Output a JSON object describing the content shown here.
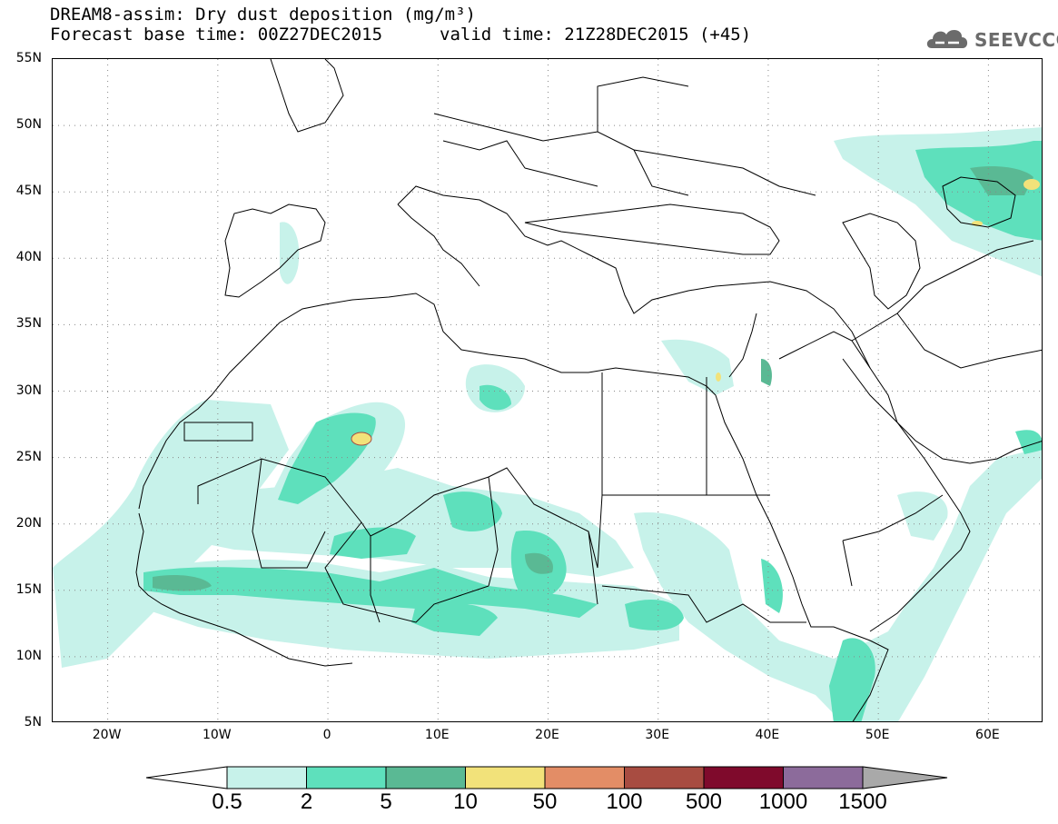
{
  "header": {
    "title": "DREAM8-assim: Dry dust deposition (mg/m³)",
    "base_time": "Forecast base time: 00Z27DEC2015",
    "valid_time": "valid time: 21Z28DEC2015 (+45)"
  },
  "logo": {
    "text": "SEEVCCC",
    "icon": "cloud-logo-icon",
    "color": "#6b6b6b"
  },
  "map": {
    "projection": "equirectangular",
    "lon_range": [
      -25,
      65
    ],
    "lat_range": [
      5,
      55
    ],
    "lat_labels": [
      "55N",
      "50N",
      "45N",
      "40N",
      "35N",
      "30N",
      "25N",
      "20N",
      "15N",
      "10N",
      "5N"
    ],
    "lon_labels": [
      "20W",
      "10W",
      "0",
      "10E",
      "20E",
      "30E",
      "40E",
      "50E",
      "60E"
    ],
    "gridlines": "dotted"
  },
  "legend": {
    "levels": [
      "0.5",
      "2",
      "5",
      "10",
      "50",
      "100",
      "500",
      "1000",
      "1500"
    ],
    "colors": [
      "#ffffff",
      "#c7f2ea",
      "#5ee0bc",
      "#5ab994",
      "#f2e27a",
      "#e38d66",
      "#a84c41",
      "#7f0a2c",
      "#8c6b9b",
      "#a9a9a9"
    ]
  }
}
